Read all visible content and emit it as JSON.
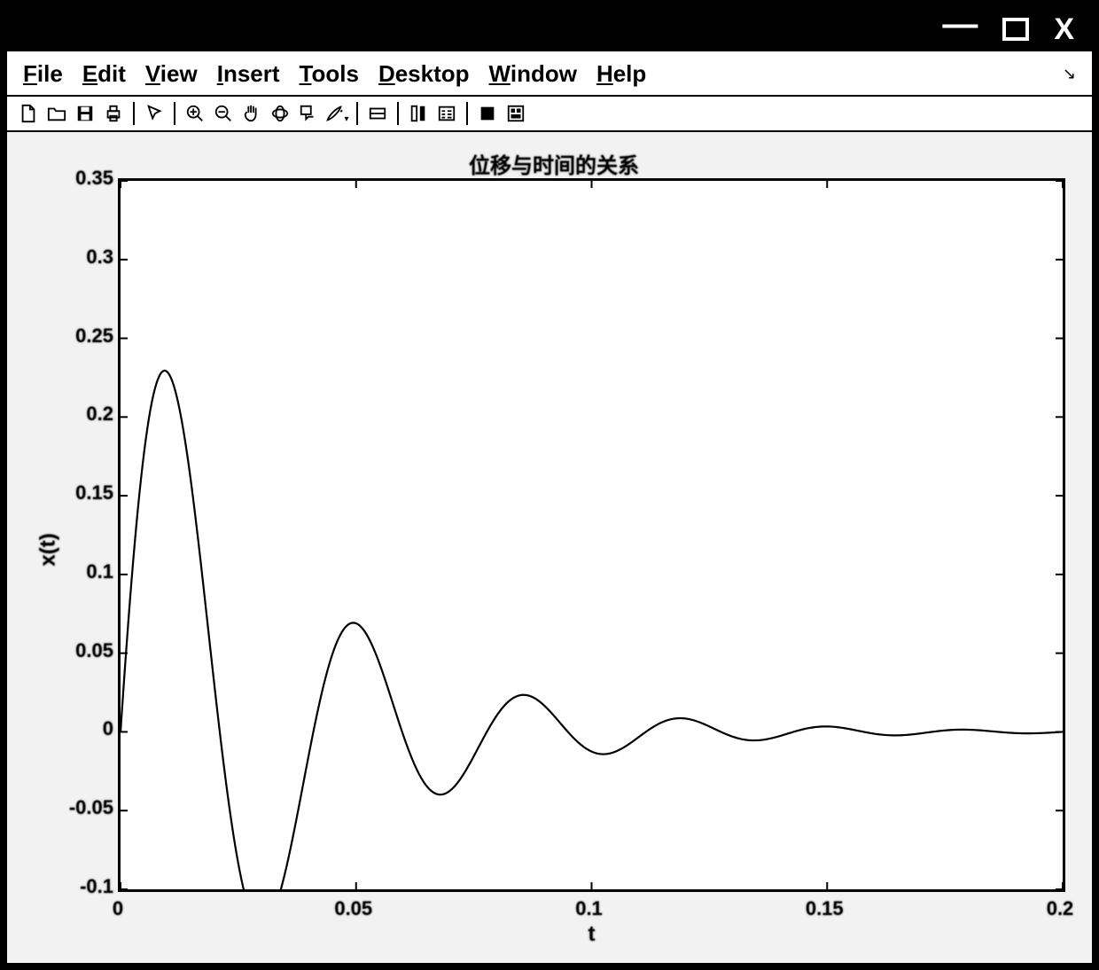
{
  "window": {
    "minimize_label": "—",
    "maximize_label": "□",
    "close_label": "X"
  },
  "menubar": {
    "items": [
      {
        "label": "File",
        "underline_index": 0
      },
      {
        "label": "Edit",
        "underline_index": 0
      },
      {
        "label": "View",
        "underline_index": 0
      },
      {
        "label": "Insert",
        "underline_index": 0
      },
      {
        "label": "Tools",
        "underline_index": 0
      },
      {
        "label": "Desktop",
        "underline_index": 0
      },
      {
        "label": "Window",
        "underline_index": 0
      },
      {
        "label": "Help",
        "underline_index": 0
      }
    ],
    "corner_symbol": "↘"
  },
  "toolbar": {
    "groups": [
      [
        "new-file",
        "open-file",
        "save",
        "print"
      ],
      [
        "pointer"
      ],
      [
        "zoom-in",
        "zoom-out",
        "pan",
        "rotate3d",
        "data-cursor",
        "brush"
      ],
      [
        "link-axes"
      ],
      [
        "insert-colorbar",
        "insert-legend"
      ],
      [
        "hide-plot-tools",
        "show-plot-tools"
      ]
    ]
  },
  "chart": {
    "type": "line",
    "title": "位移与时间的关系",
    "xlabel": "t",
    "ylabel": "x(t)",
    "title_fontsize": 24,
    "label_fontsize": 24,
    "tick_fontsize": 22,
    "xlim": [
      0,
      0.2
    ],
    "ylim": [
      -0.1,
      0.35
    ],
    "xticks": [
      0,
      0.05,
      0.1,
      0.15,
      0.2
    ],
    "xtick_labels": [
      "0",
      "0.05",
      "0.1",
      "0.15",
      "0.2"
    ],
    "yticks": [
      -0.1,
      -0.05,
      0,
      0.05,
      0.1,
      0.15,
      0.2,
      0.25,
      0.3,
      0.35
    ],
    "ytick_labels": [
      "-0.1",
      "-0.05",
      "0",
      "0.05",
      "0.1",
      "0.15",
      "0.2",
      "0.25",
      "0.3",
      "0.35"
    ],
    "line_color": "#000000",
    "line_width": 2.2,
    "background_color": "#ffffff",
    "figure_background": "#f2f2f2",
    "axis_color": "#000000",
    "axis_width": 3,
    "tick_length": 8,
    "damped_params": {
      "amplitude": 0.31,
      "decay": 30,
      "base_freq": 23,
      "freq_chirp": 70,
      "phase": 0
    },
    "n_samples": 600
  }
}
